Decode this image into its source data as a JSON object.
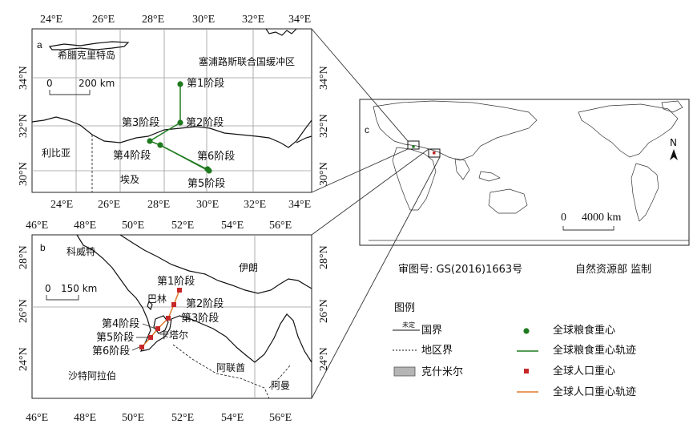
{
  "panel_a": {
    "tag": "a",
    "top_ticks": [
      "24°E",
      "26°E",
      "28°E",
      "30°E",
      "32°E",
      "34°E"
    ],
    "bottom_ticks": [
      "24°E",
      "26°E",
      "28°E",
      "30°E",
      "32°E",
      "34°E"
    ],
    "left_ticks": [
      "34°N",
      "32°N",
      "30°N"
    ],
    "right_ticks": [
      "34°N",
      "32°N",
      "30°N"
    ],
    "places": {
      "crete": "希腊克里特岛",
      "cyprus_zone": "塞浦路斯联合国缓冲区",
      "libya": "利比亚",
      "egypt": "埃及"
    },
    "scale": {
      "zero": "0",
      "value": "200 km"
    },
    "stages": [
      "第1阶段",
      "第2阶段",
      "第3阶段",
      "第4阶段",
      "第5阶段",
      "第6阶段"
    ],
    "grain_color": "#1f7a1f"
  },
  "panel_b": {
    "tag": "b",
    "top_ticks": [
      "46°E",
      "48°E",
      "50°E",
      "52°E",
      "54°E",
      "56°E"
    ],
    "bottom_ticks": [
      "46°E",
      "48°E",
      "50°E",
      "52°E",
      "54°E",
      "56°E"
    ],
    "left_ticks": [
      "28°N",
      "26°N",
      "24°N"
    ],
    "right_ticks": [
      "28°N",
      "26°N",
      "24°N"
    ],
    "places": {
      "kuwait": "科威特",
      "iran": "伊朗",
      "bahrain": "巴林",
      "qatar": "卡塔尔",
      "uae": "阿联酋",
      "oman": "阿曼",
      "saudi": "沙特阿拉伯"
    },
    "scale": {
      "zero": "0",
      "value": "150 km"
    },
    "stages": [
      "第1阶段",
      "第2阶段",
      "第3阶段",
      "第4阶段",
      "第5阶段",
      "第6阶段"
    ],
    "population_color": "#c62828"
  },
  "panel_c": {
    "tag": "c",
    "scale": {
      "zero": "0",
      "value": "4000 km"
    },
    "north": "N"
  },
  "credits": {
    "review_no": "审图号: GS(2016)1663号",
    "agency": "自然资源部 监制"
  },
  "legend": {
    "title": "图例",
    "items": [
      {
        "key": "national_border",
        "label": "国界",
        "marker_note": "未定"
      },
      {
        "key": "regional_border",
        "label": "地区界"
      },
      {
        "key": "kashmir",
        "label": "克什米尔"
      },
      {
        "key": "grain_center",
        "label": "全球粮食重心"
      },
      {
        "key": "grain_track",
        "label": "全球粮食重心轨迹"
      },
      {
        "key": "pop_center",
        "label": "全球人口重心"
      },
      {
        "key": "pop_track",
        "label": "全球人口重心轨迹"
      }
    ],
    "colors": {
      "grain": "#1f7a1f",
      "population": "#c62828",
      "pop_track": "#e07a2a",
      "kashmir": "#b5b5b5"
    }
  }
}
